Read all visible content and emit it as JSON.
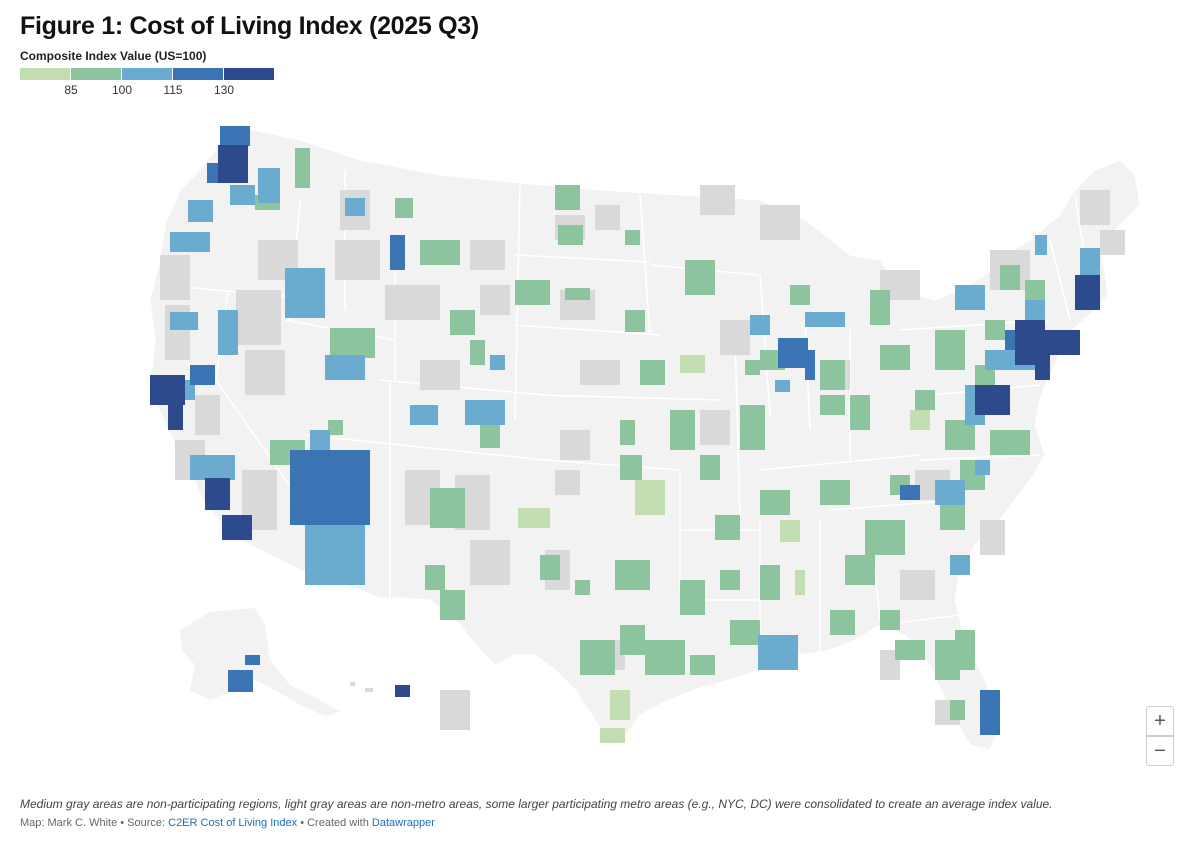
{
  "title": "Figure 1: Cost of Living Index (2025 Q3)",
  "legend": {
    "title": "Composite Index Value (US=100)",
    "colors": [
      "#c2deb0",
      "#8cc49e",
      "#6aabcf",
      "#3a74b4",
      "#2d4a8d"
    ],
    "ticks": [
      "85",
      "100",
      "115",
      "130"
    ]
  },
  "map_colors": {
    "background_land": "#f2f2f2",
    "non_participating": "#d9d9d9",
    "state_border": "#ffffff"
  },
  "zoom": {
    "in_label": "+",
    "out_label": "−"
  },
  "note": "Medium gray areas are non-participating regions, light gray areas are non-metro areas, some larger participating metro areas (e.g., NYC, DC) were consolidated to create an average index value.",
  "credit": {
    "map_by": "Map: Mark C. White",
    "separator": " • ",
    "source_prefix": "Source: ",
    "source_link": "C2ER Cost of Living Index",
    "created_prefix": "Created with ",
    "created_link": "Datawrapper"
  }
}
